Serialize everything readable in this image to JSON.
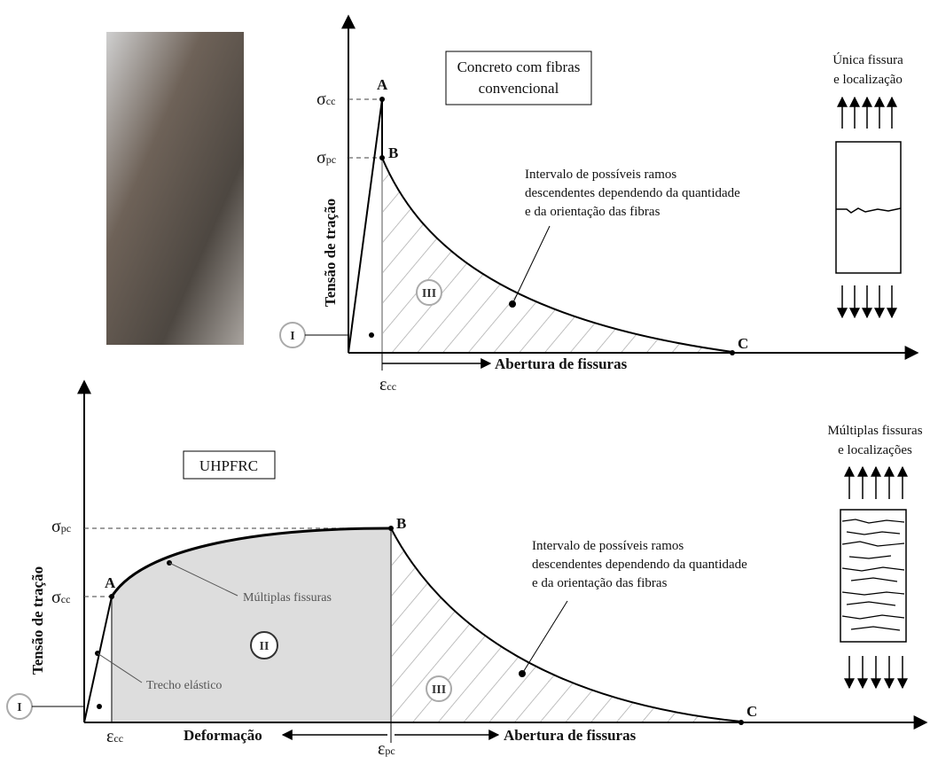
{
  "top": {
    "box": [
      "Concreto com fibras",
      "convencional"
    ],
    "y_label": "Tensão de tração",
    "x_label": "Abertura de fissuras",
    "points": [
      "A",
      "B",
      "C"
    ],
    "sigma_cc": {
      "symbol": "σ",
      "sub": "cc"
    },
    "sigma_pc": {
      "symbol": "σ",
      "sub": "pc"
    },
    "epsilon_cc": {
      "symbol": "ε",
      "sub": "cc"
    },
    "regions": [
      "I",
      "III"
    ],
    "note": [
      "Intervalo de possíveis ramos",
      "descendentes dependendo da quantidade",
      "e da orientação das fibras"
    ],
    "specimen": [
      "Única fissura",
      "e localização"
    ]
  },
  "bottom": {
    "box": "UHPFRC",
    "y_label": "Tensão de tração",
    "x_label_left": "Deformação",
    "x_label_right": "Abertura de fissuras",
    "points": [
      "A",
      "B",
      "C"
    ],
    "sigma_pc": {
      "symbol": "σ",
      "sub": "pc"
    },
    "sigma_cc": {
      "symbol": "σ",
      "sub": "cc"
    },
    "epsilon_cc": {
      "symbol": "ε",
      "sub": "cc"
    },
    "epsilon_pc": {
      "symbol": "ε",
      "sub": "pc"
    },
    "regions": [
      "I",
      "II",
      "III"
    ],
    "multiple_cracks": "Múltiplas fissuras",
    "elastic": "Trecho elástico",
    "note": [
      "Intervalo de possíveis ramos",
      "descendentes dependendo da quantidade",
      "e da orientação das fibras"
    ],
    "specimen": [
      "Múltiplas fissuras",
      "e localizações"
    ]
  }
}
